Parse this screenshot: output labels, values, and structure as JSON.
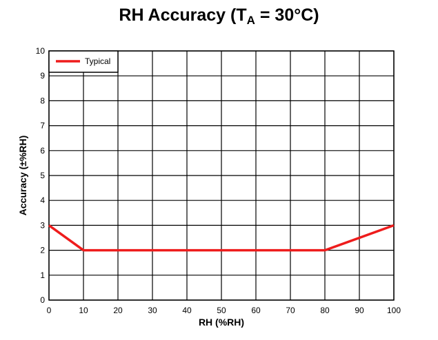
{
  "chart_data": {
    "type": "line",
    "title_main": "RH Accuracy (T",
    "title_sub": "A",
    "title_tail": " = 30°C)",
    "xlabel": "RH (%RH)",
    "ylabel": "Accuracy (±%RH)",
    "xlim": [
      0,
      100
    ],
    "ylim": [
      0,
      10
    ],
    "x_ticks": [
      0,
      10,
      20,
      30,
      40,
      50,
      60,
      70,
      80,
      90,
      100
    ],
    "y_ticks": [
      0,
      1,
      2,
      3,
      4,
      5,
      6,
      7,
      8,
      9,
      10
    ],
    "grid": true,
    "legend_position": "top-left",
    "series": [
      {
        "name": "Typical",
        "color": "#ee1c1c",
        "x": [
          0,
          10,
          80,
          100
        ],
        "y": [
          3,
          2,
          2,
          3
        ]
      }
    ]
  }
}
